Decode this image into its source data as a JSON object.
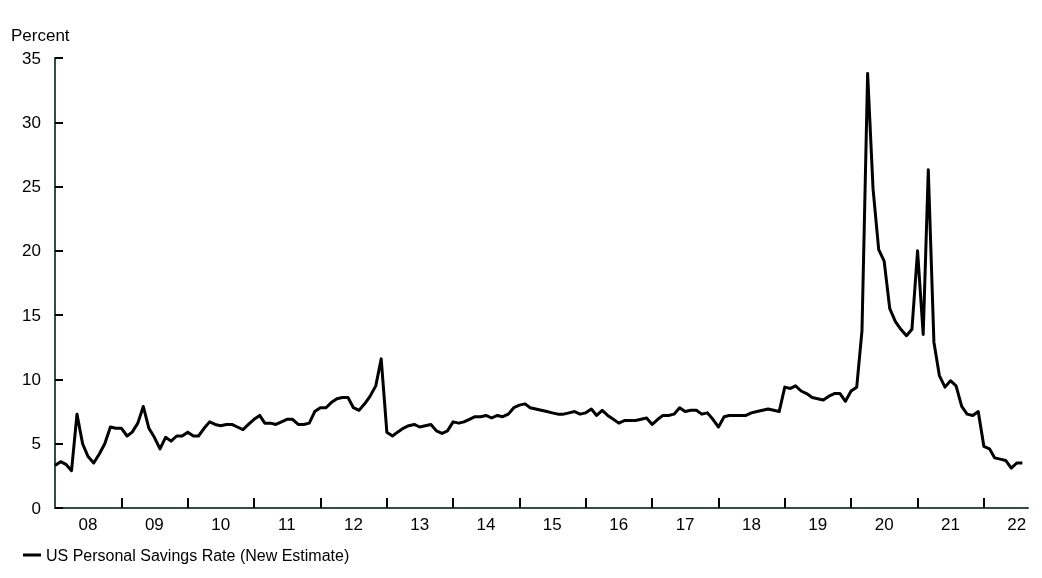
{
  "chart_data": {
    "type": "line",
    "ylabel": "Percent",
    "x": [
      "2008-01",
      "2008-02",
      "2008-03",
      "2008-04",
      "2008-05",
      "2008-06",
      "2008-07",
      "2008-08",
      "2008-09",
      "2008-10",
      "2008-11",
      "2008-12",
      "2009-01",
      "2009-02",
      "2009-03",
      "2009-04",
      "2009-05",
      "2009-06",
      "2009-07",
      "2009-08",
      "2009-09",
      "2009-10",
      "2009-11",
      "2009-12",
      "2010-01",
      "2010-02",
      "2010-03",
      "2010-04",
      "2010-05",
      "2010-06",
      "2010-07",
      "2010-08",
      "2010-09",
      "2010-10",
      "2010-11",
      "2010-12",
      "2011-01",
      "2011-02",
      "2011-03",
      "2011-04",
      "2011-05",
      "2011-06",
      "2011-07",
      "2011-08",
      "2011-09",
      "2011-10",
      "2011-11",
      "2011-12",
      "2012-01",
      "2012-02",
      "2012-03",
      "2012-04",
      "2012-05",
      "2012-06",
      "2012-07",
      "2012-08",
      "2012-09",
      "2012-10",
      "2012-11",
      "2012-12",
      "2013-01",
      "2013-02",
      "2013-03",
      "2013-04",
      "2013-05",
      "2013-06",
      "2013-07",
      "2013-08",
      "2013-09",
      "2013-10",
      "2013-11",
      "2013-12",
      "2014-01",
      "2014-02",
      "2014-03",
      "2014-04",
      "2014-05",
      "2014-06",
      "2014-07",
      "2014-08",
      "2014-09",
      "2014-10",
      "2014-11",
      "2014-12",
      "2015-01",
      "2015-02",
      "2015-03",
      "2015-04",
      "2015-05",
      "2015-06",
      "2015-07",
      "2015-08",
      "2015-09",
      "2015-10",
      "2015-11",
      "2015-12",
      "2016-01",
      "2016-02",
      "2016-03",
      "2016-04",
      "2016-05",
      "2016-06",
      "2016-07",
      "2016-08",
      "2016-09",
      "2016-10",
      "2016-11",
      "2016-12",
      "2017-01",
      "2017-02",
      "2017-03",
      "2017-04",
      "2017-05",
      "2017-06",
      "2017-07",
      "2017-08",
      "2017-09",
      "2017-10",
      "2017-11",
      "2017-12",
      "2018-01",
      "2018-02",
      "2018-03",
      "2018-04",
      "2018-05",
      "2018-06",
      "2018-07",
      "2018-08",
      "2018-09",
      "2018-10",
      "2018-11",
      "2018-12",
      "2019-01",
      "2019-02",
      "2019-03",
      "2019-04",
      "2019-05",
      "2019-06",
      "2019-07",
      "2019-08",
      "2019-09",
      "2019-10",
      "2019-11",
      "2019-12",
      "2020-01",
      "2020-02",
      "2020-03",
      "2020-04",
      "2020-05",
      "2020-06",
      "2020-07",
      "2020-08",
      "2020-09",
      "2020-10",
      "2020-11",
      "2020-12",
      "2021-01",
      "2021-02",
      "2021-03",
      "2021-04",
      "2021-05",
      "2021-06",
      "2021-07",
      "2021-08",
      "2021-09",
      "2021-10",
      "2021-11",
      "2021-12",
      "2022-01",
      "2022-02",
      "2022-03",
      "2022-04",
      "2022-05",
      "2022-06",
      "2022-07",
      "2022-08"
    ],
    "series": [
      {
        "name": "US Personal Savings Rate (New Estimate)",
        "color": "#000000",
        "values": [
          3.3,
          3.6,
          3.4,
          2.9,
          7.3,
          5.0,
          4.0,
          3.5,
          4.2,
          5.0,
          6.3,
          6.2,
          6.2,
          5.6,
          5.9,
          6.6,
          7.9,
          6.2,
          5.5,
          4.6,
          5.5,
          5.2,
          5.6,
          5.6,
          5.9,
          5.6,
          5.6,
          6.2,
          6.7,
          6.5,
          6.4,
          6.5,
          6.5,
          6.3,
          6.1,
          6.5,
          6.9,
          7.2,
          6.6,
          6.6,
          6.5,
          6.7,
          6.9,
          6.9,
          6.5,
          6.5,
          6.6,
          7.5,
          7.8,
          7.8,
          8.2,
          8.5,
          8.6,
          8.6,
          7.8,
          7.6,
          8.1,
          8.7,
          9.5,
          11.6,
          5.9,
          5.6,
          5.9,
          6.2,
          6.4,
          6.5,
          6.3,
          6.4,
          6.5,
          6.0,
          5.8,
          6.0,
          6.7,
          6.6,
          6.7,
          6.9,
          7.1,
          7.1,
          7.2,
          7.0,
          7.2,
          7.1,
          7.3,
          7.8,
          8.0,
          8.1,
          7.8,
          7.7,
          7.6,
          7.5,
          7.4,
          7.3,
          7.3,
          7.4,
          7.5,
          7.3,
          7.4,
          7.7,
          7.2,
          7.6,
          7.2,
          6.9,
          6.6,
          6.8,
          6.8,
          6.8,
          6.9,
          7.0,
          6.5,
          6.9,
          7.2,
          7.2,
          7.3,
          7.8,
          7.5,
          7.6,
          7.6,
          7.3,
          7.4,
          6.9,
          6.3,
          7.1,
          7.2,
          7.2,
          7.2,
          7.2,
          7.4,
          7.5,
          7.6,
          7.7,
          7.6,
          7.5,
          9.4,
          9.3,
          9.5,
          9.1,
          8.9,
          8.6,
          8.5,
          8.4,
          8.7,
          8.9,
          8.9,
          8.3,
          9.1,
          9.4,
          13.8,
          33.8,
          24.8,
          20.1,
          19.2,
          15.5,
          14.5,
          13.9,
          13.4,
          13.9,
          20.0,
          13.5,
          26.3,
          12.9,
          10.3,
          9.4,
          9.9,
          9.5,
          7.9,
          7.3,
          7.2,
          7.5,
          4.8,
          4.6,
          3.9,
          3.8,
          3.7,
          3.1,
          3.5,
          3.5
        ]
      }
    ],
    "xlim": [
      "2008-01",
      "2022-09"
    ],
    "xticks": [
      {
        "value": "2009",
        "label": null
      },
      {
        "value": "2010",
        "label": null
      },
      {
        "value": "2011",
        "label": null
      },
      {
        "value": "2012",
        "label": null
      },
      {
        "value": "2013",
        "label": null
      },
      {
        "value": "2014",
        "label": null
      },
      {
        "value": "2015",
        "label": null
      },
      {
        "value": "2016",
        "label": null
      },
      {
        "value": "2017",
        "label": null
      },
      {
        "value": "2018",
        "label": null
      },
      {
        "value": "2019",
        "label": null
      },
      {
        "value": "2020",
        "label": null
      },
      {
        "value": "2021",
        "label": null
      },
      {
        "value": "2022",
        "label": null
      },
      {
        "value": "2008-07",
        "label": "08"
      },
      {
        "value": "2009-07",
        "label": "09"
      },
      {
        "value": "2010-07",
        "label": "10"
      },
      {
        "value": "2011-07",
        "label": "11"
      },
      {
        "value": "2012-07",
        "label": "12"
      },
      {
        "value": "2013-07",
        "label": "13"
      },
      {
        "value": "2014-07",
        "label": "14"
      },
      {
        "value": "2015-07",
        "label": "15"
      },
      {
        "value": "2016-07",
        "label": "16"
      },
      {
        "value": "2017-07",
        "label": "17"
      },
      {
        "value": "2018-07",
        "label": "18"
      },
      {
        "value": "2019-07",
        "label": "19"
      },
      {
        "value": "2020-07",
        "label": "20"
      },
      {
        "value": "2021-07",
        "label": "21"
      },
      {
        "value": "2022-07",
        "label": "22"
      }
    ],
    "ylim": [
      0,
      35
    ],
    "yticks": [
      0,
      5,
      10,
      15,
      20,
      25,
      30,
      35
    ],
    "grid": false,
    "legend": "bottom left",
    "marker": "none",
    "line_style": "solid"
  }
}
